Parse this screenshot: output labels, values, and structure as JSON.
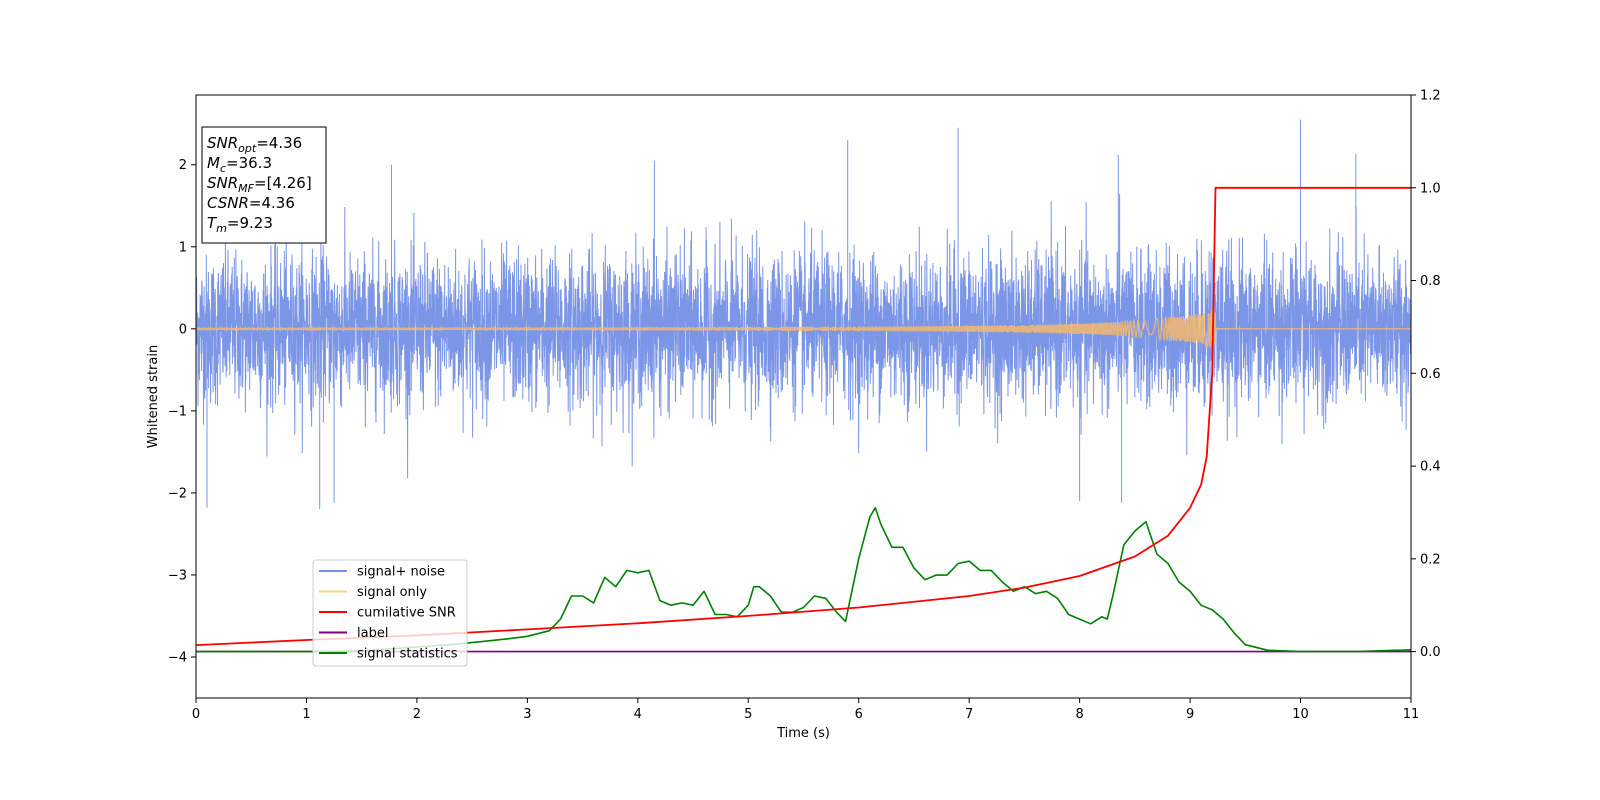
{
  "chart_data": {
    "type": "line",
    "xlabel": "Time (s)",
    "ylabel": "Whitened strain",
    "xlim": [
      0,
      11
    ],
    "ylim_left": [
      -4.5,
      2.85
    ],
    "ylim_right": [
      -0.1,
      1.2
    ],
    "x_ticks": [
      0,
      1,
      2,
      3,
      4,
      5,
      6,
      7,
      8,
      9,
      10,
      11
    ],
    "y_ticks_left": [
      2,
      1,
      0,
      -1,
      -2,
      -3,
      -4
    ],
    "y_ticks_right": [
      1.2,
      1.0,
      0.8,
      0.6,
      0.4,
      0.2,
      0.0
    ],
    "y_tick_labels_left": [
      "2",
      "1",
      "0",
      "−1",
      "−2",
      "−3",
      "−4"
    ],
    "y_tick_labels_right": [
      "1.2",
      "1.0",
      "0.8",
      "0.6",
      "0.4",
      "0.2",
      "0.0"
    ],
    "grid": false,
    "legend_position": "lower-left",
    "legend": [
      {
        "label": "signal+ noise",
        "color": "#7590e6"
      },
      {
        "label": "signal only",
        "color": "#ffd27f"
      },
      {
        "label": "cumilative SNR",
        "color": "#ff0000"
      },
      {
        "label": "label",
        "color": "#800080"
      },
      {
        "label": "signal statistics",
        "color": "#008000"
      }
    ],
    "annotation": [
      {
        "main": "SNR",
        "sub": "opt",
        "rest": "=4.36"
      },
      {
        "main": "M",
        "sub": "c",
        "rest": "=36.3"
      },
      {
        "main": "SNR",
        "sub": "MF",
        "rest": "=[4.26]"
      },
      {
        "main": "CSNR",
        "sub": "",
        "rest": "=4.36"
      },
      {
        "main": "T",
        "sub": "m",
        "rest": "=9.23"
      }
    ],
    "series": [
      {
        "name": "signal+ noise",
        "axis": "left",
        "color": "#7590e6",
        "noise_std": 0.45,
        "notable_peaks": [
          [
            0.1,
            -2.18
          ],
          [
            1.12,
            -2.2
          ],
          [
            1.25,
            -2.12
          ],
          [
            1.77,
            2.0
          ],
          [
            4.15,
            2.05
          ],
          [
            5.9,
            2.3
          ],
          [
            6.9,
            2.45
          ],
          [
            8.35,
            2.12
          ],
          [
            10.0,
            2.55
          ],
          [
            10.5,
            2.13
          ],
          [
            8.0,
            -2.1
          ],
          [
            8.38,
            -2.12
          ]
        ]
      },
      {
        "name": "signal only",
        "axis": "left",
        "color": "#f5b96c",
        "merger_time": 9.23,
        "peak_amplitude": 0.35
      },
      {
        "name": "cumilative SNR",
        "axis": "right",
        "color": "#ff0000",
        "x": [
          0,
          1,
          2,
          3,
          4,
          5,
          6,
          7,
          7.5,
          8,
          8.5,
          8.8,
          9.0,
          9.1,
          9.15,
          9.2,
          9.23,
          11
        ],
        "y": [
          0.014,
          0.025,
          0.035,
          0.048,
          0.061,
          0.077,
          0.095,
          0.12,
          0.138,
          0.163,
          0.205,
          0.25,
          0.31,
          0.36,
          0.42,
          0.6,
          1.0,
          1.0
        ]
      },
      {
        "name": "label",
        "axis": "right",
        "color": "#800080",
        "x": [
          0,
          11
        ],
        "y": [
          0.0,
          0.0
        ]
      },
      {
        "name": "signal statistics",
        "axis": "right",
        "color": "#008000",
        "x": [
          0,
          0.5,
          1,
          1.5,
          2,
          2.3,
          2.6,
          2.8,
          3.0,
          3.2,
          3.3,
          3.4,
          3.5,
          3.6,
          3.7,
          3.8,
          3.9,
          4.0,
          4.1,
          4.2,
          4.3,
          4.4,
          4.5,
          4.6,
          4.7,
          4.8,
          4.9,
          5.0,
          5.05,
          5.1,
          5.2,
          5.3,
          5.4,
          5.5,
          5.6,
          5.7,
          5.8,
          5.88,
          6.0,
          6.1,
          6.15,
          6.2,
          6.3,
          6.4,
          6.5,
          6.6,
          6.7,
          6.8,
          6.9,
          7.0,
          7.1,
          7.2,
          7.3,
          7.4,
          7.5,
          7.6,
          7.7,
          7.8,
          7.9,
          8.0,
          8.1,
          8.2,
          8.25,
          8.3,
          8.4,
          8.5,
          8.6,
          8.7,
          8.8,
          8.9,
          9.0,
          9.1,
          9.2,
          9.3,
          9.4,
          9.5,
          9.7,
          10.0,
          10.5,
          11.0
        ],
        "y": [
          0.0,
          0.0,
          0.0,
          0.002,
          0.01,
          0.015,
          0.022,
          0.027,
          0.033,
          0.045,
          0.07,
          0.12,
          0.12,
          0.105,
          0.16,
          0.14,
          0.175,
          0.17,
          0.175,
          0.11,
          0.1,
          0.105,
          0.1,
          0.13,
          0.08,
          0.08,
          0.075,
          0.1,
          0.14,
          0.14,
          0.12,
          0.085,
          0.085,
          0.095,
          0.12,
          0.115,
          0.085,
          0.065,
          0.2,
          0.29,
          0.31,
          0.275,
          0.225,
          0.225,
          0.18,
          0.155,
          0.165,
          0.165,
          0.19,
          0.195,
          0.175,
          0.175,
          0.15,
          0.13,
          0.14,
          0.125,
          0.13,
          0.115,
          0.08,
          0.07,
          0.06,
          0.075,
          0.07,
          0.12,
          0.23,
          0.26,
          0.28,
          0.21,
          0.19,
          0.15,
          0.13,
          0.1,
          0.09,
          0.07,
          0.04,
          0.015,
          0.003,
          0.0,
          0.0,
          0.004
        ]
      }
    ]
  }
}
